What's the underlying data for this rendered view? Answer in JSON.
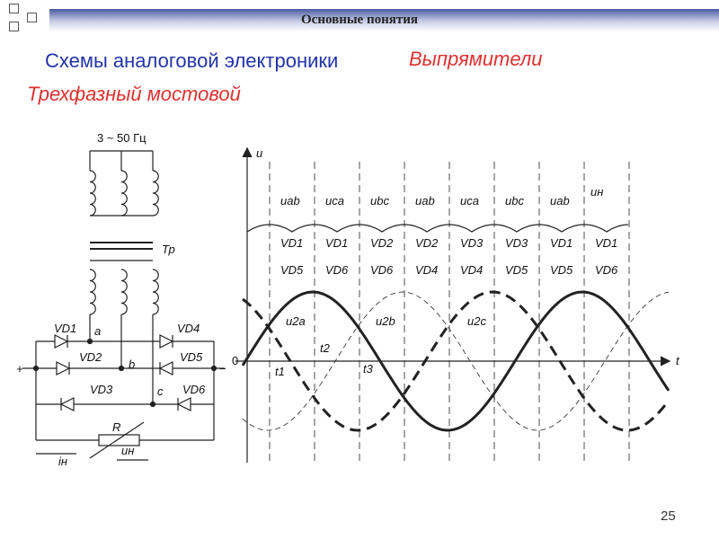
{
  "header": {
    "title": "Основные понятия"
  },
  "slide": {
    "title": "Схемы аналоговой электроники",
    "topic": "Выпрямители",
    "subtitle": "Трехфазный мостовой",
    "page_number": "25"
  },
  "circuit": {
    "supply": "3 ~ 50 Гц",
    "transformer": "Тр",
    "labels": [
      "VD1",
      "a",
      "VD4",
      "VD2",
      "b",
      "VD5",
      "+",
      "−",
      "VD3",
      "c",
      "VD6",
      "R",
      "iн",
      "uн"
    ]
  },
  "waveform": {
    "y_axis": "u",
    "x_axis": "t",
    "origin": "0",
    "intervals": [
      "uab",
      "uca",
      "ubc",
      "uab",
      "uca",
      "ubc",
      "uab",
      "uн"
    ],
    "diodes_top": [
      "VD1",
      "VD1",
      "VD2",
      "VD2",
      "VD3",
      "VD3",
      "VD1",
      "VD1"
    ],
    "diodes_bottom": [
      "VD5",
      "VD6",
      "VD6",
      "VD4",
      "VD4",
      "VD5",
      "VD5",
      "VD6"
    ],
    "curves": [
      "u2a",
      "u2b",
      "u2c"
    ],
    "times": [
      "t1",
      "t2",
      "t3"
    ]
  }
}
